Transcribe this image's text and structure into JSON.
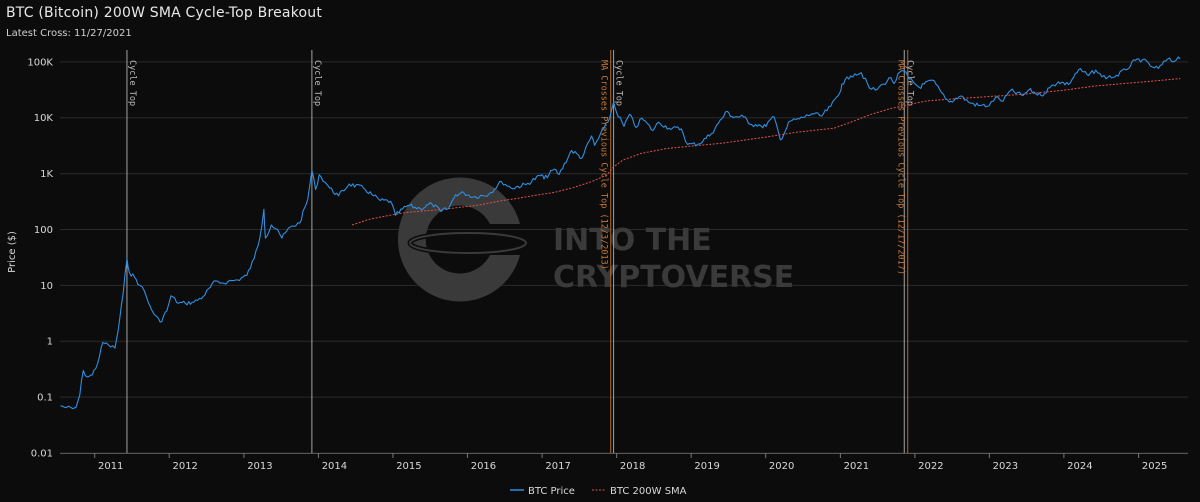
{
  "header": {
    "title": "BTC (Bitcoin) 200W SMA Cycle-Top Breakout",
    "subtitle": "Latest Cross: 11/27/2021"
  },
  "watermark": {
    "line1": "INTO THE",
    "line2": "CRYPTOVERSE"
  },
  "colors": {
    "background": "#0c0c0c",
    "price": "#2f8fe0",
    "sma": "#e05050",
    "cycle_top_line": "#bdbdbd",
    "ma_cross_line": "#c87a3a",
    "grid": "#2a2a2a"
  },
  "chart_data": {
    "type": "line",
    "title": "BTC (Bitcoin) 200W SMA Cycle-Top Breakout",
    "ylabel": "Price ($)",
    "xlabel": "",
    "yscale": "log",
    "ylim": [
      0.01,
      200000
    ],
    "xlim": [
      "2010-07-15",
      "2025-08-31"
    ],
    "y_ticks": [
      {
        "value": 0.01,
        "label": "0.01"
      },
      {
        "value": 0.1,
        "label": "0.1"
      },
      {
        "value": 1,
        "label": "1"
      },
      {
        "value": 10,
        "label": "10"
      },
      {
        "value": 100,
        "label": "100"
      },
      {
        "value": 1000,
        "label": "1K"
      },
      {
        "value": 10000,
        "label": "10K"
      },
      {
        "value": 100000,
        "label": "100K"
      }
    ],
    "x_ticks": [
      "2011",
      "2012",
      "2013",
      "2014",
      "2015",
      "2016",
      "2017",
      "2018",
      "2019",
      "2020",
      "2021",
      "2022",
      "2023",
      "2024",
      "2025"
    ],
    "grid": true,
    "legend_position": "bottom-center",
    "series": [
      {
        "name": "BTC Price",
        "style": "solid",
        "points": [
          [
            "2010-07-18",
            0.07
          ],
          [
            "2010-08-15",
            0.065
          ],
          [
            "2010-09-15",
            0.062
          ],
          [
            "2010-10-01",
            0.065
          ],
          [
            "2010-10-20",
            0.11
          ],
          [
            "2010-11-06",
            0.3
          ],
          [
            "2010-11-25",
            0.23
          ],
          [
            "2010-12-20",
            0.25
          ],
          [
            "2011-01-15",
            0.4
          ],
          [
            "2011-02-10",
            0.95
          ],
          [
            "2011-03-10",
            0.85
          ],
          [
            "2011-04-10",
            0.75
          ],
          [
            "2011-04-25",
            1.5
          ],
          [
            "2011-05-20",
            7
          ],
          [
            "2011-06-08",
            30
          ],
          [
            "2011-06-20",
            17
          ],
          [
            "2011-07-15",
            14
          ],
          [
            "2011-08-10",
            10
          ],
          [
            "2011-09-01",
            8
          ],
          [
            "2011-09-20",
            5
          ],
          [
            "2011-10-20",
            3
          ],
          [
            "2011-11-18",
            2.2
          ],
          [
            "2011-12-20",
            3.5
          ],
          [
            "2012-01-10",
            6.5
          ],
          [
            "2012-02-15",
            4.8
          ],
          [
            "2012-03-20",
            4.8
          ],
          [
            "2012-05-01",
            5
          ],
          [
            "2012-06-15",
            6.3
          ],
          [
            "2012-08-16",
            12
          ],
          [
            "2012-09-15",
            11
          ],
          [
            "2012-10-15",
            11.7
          ],
          [
            "2012-12-01",
            12.5
          ],
          [
            "2013-01-15",
            15
          ],
          [
            "2013-02-20",
            30
          ],
          [
            "2013-03-20",
            70
          ],
          [
            "2013-04-09",
            230
          ],
          [
            "2013-04-16",
            70
          ],
          [
            "2013-05-15",
            120
          ],
          [
            "2013-06-15",
            100
          ],
          [
            "2013-07-06",
            70
          ],
          [
            "2013-08-15",
            110
          ],
          [
            "2013-10-01",
            130
          ],
          [
            "2013-11-10",
            350
          ],
          [
            "2013-11-30",
            1150
          ],
          [
            "2013-12-18",
            520
          ],
          [
            "2014-01-05",
            950
          ],
          [
            "2014-02-10",
            650
          ],
          [
            "2014-02-25",
            550
          ],
          [
            "2014-04-10",
            400
          ],
          [
            "2014-06-01",
            650
          ],
          [
            "2014-08-10",
            550
          ],
          [
            "2014-09-20",
            420
          ],
          [
            "2014-11-01",
            330
          ],
          [
            "2014-12-20",
            320
          ],
          [
            "2015-01-14",
            180
          ],
          [
            "2015-03-15",
            270
          ],
          [
            "2015-05-15",
            235
          ],
          [
            "2015-07-10",
            290
          ],
          [
            "2015-08-24",
            210
          ],
          [
            "2015-10-01",
            240
          ],
          [
            "2015-11-04",
            420
          ],
          [
            "2015-12-15",
            450
          ],
          [
            "2016-02-01",
            380
          ],
          [
            "2016-04-15",
            430
          ],
          [
            "2016-06-16",
            720
          ],
          [
            "2016-08-02",
            550
          ],
          [
            "2016-10-15",
            640
          ],
          [
            "2016-12-31",
            960
          ],
          [
            "2017-01-10",
            800
          ],
          [
            "2017-03-01",
            1200
          ],
          [
            "2017-03-25",
            960
          ],
          [
            "2017-05-25",
            2600
          ],
          [
            "2017-07-15",
            1900
          ],
          [
            "2017-08-31",
            4700
          ],
          [
            "2017-09-15",
            3200
          ],
          [
            "2017-10-31",
            6400
          ],
          [
            "2017-11-28",
            10000
          ],
          [
            "2017-12-17",
            19000
          ],
          [
            "2017-12-30",
            13000
          ],
          [
            "2018-02-06",
            7000
          ],
          [
            "2018-03-05",
            11500
          ],
          [
            "2018-04-06",
            6700
          ],
          [
            "2018-05-05",
            9800
          ],
          [
            "2018-06-28",
            5900
          ],
          [
            "2018-07-25",
            8300
          ],
          [
            "2018-09-15",
            6500
          ],
          [
            "2018-11-14",
            6300
          ],
          [
            "2018-12-15",
            3300
          ],
          [
            "2019-02-08",
            3400
          ],
          [
            "2019-04-10",
            5200
          ],
          [
            "2019-05-15",
            8000
          ],
          [
            "2019-06-26",
            13000
          ],
          [
            "2019-07-20",
            10500
          ],
          [
            "2019-09-15",
            10300
          ],
          [
            "2019-10-25",
            7500
          ],
          [
            "2019-11-30",
            7500
          ],
          [
            "2019-12-18",
            6600
          ],
          [
            "2020-02-12",
            10300
          ],
          [
            "2020-03-13",
            4000
          ],
          [
            "2020-04-30",
            8700
          ],
          [
            "2020-06-15",
            9500
          ],
          [
            "2020-08-15",
            11800
          ],
          [
            "2020-10-01",
            10700
          ],
          [
            "2020-11-15",
            16000
          ],
          [
            "2020-12-31",
            29000
          ],
          [
            "2021-01-08",
            40000
          ],
          [
            "2021-02-20",
            56000
          ],
          [
            "2021-03-13",
            61000
          ],
          [
            "2021-04-14",
            63500
          ],
          [
            "2021-05-23",
            34000
          ],
          [
            "2021-06-22",
            31000
          ],
          [
            "2021-07-30",
            40000
          ],
          [
            "2021-09-06",
            52000
          ],
          [
            "2021-09-21",
            41000
          ],
          [
            "2021-10-20",
            66000
          ],
          [
            "2021-11-10",
            68000
          ],
          [
            "2021-12-05",
            49000
          ],
          [
            "2022-01-22",
            35000
          ],
          [
            "2022-03-28",
            47000
          ],
          [
            "2022-05-12",
            28000
          ],
          [
            "2022-06-18",
            19000
          ],
          [
            "2022-08-14",
            24500
          ],
          [
            "2022-09-20",
            19000
          ],
          [
            "2022-11-09",
            16500
          ],
          [
            "2022-12-31",
            16500
          ],
          [
            "2023-01-31",
            23000
          ],
          [
            "2023-03-10",
            20000
          ],
          [
            "2023-04-14",
            30500
          ],
          [
            "2023-06-15",
            25000
          ],
          [
            "2023-07-13",
            31500
          ],
          [
            "2023-09-11",
            25000
          ],
          [
            "2023-10-24",
            34500
          ],
          [
            "2023-12-05",
            44000
          ],
          [
            "2024-01-23",
            39500
          ],
          [
            "2024-03-14",
            73000
          ],
          [
            "2024-05-01",
            57000
          ],
          [
            "2024-06-05",
            71000
          ],
          [
            "2024-07-05",
            54000
          ],
          [
            "2024-08-05",
            54000
          ],
          [
            "2024-09-06",
            53500
          ],
          [
            "2024-10-29",
            72000
          ],
          [
            "2024-12-17",
            106000
          ],
          [
            "2025-01-20",
            109000
          ],
          [
            "2025-02-28",
            84000
          ],
          [
            "2025-04-08",
            76000
          ],
          [
            "2025-05-22",
            111000
          ],
          [
            "2025-06-22",
            100000
          ],
          [
            "2025-07-14",
            122000
          ],
          [
            "2025-07-25",
            117000
          ]
        ]
      },
      {
        "name": "BTC 200W SMA",
        "style": "dashed",
        "points": [
          [
            "2014-06-15",
            120
          ],
          [
            "2014-09-01",
            150
          ],
          [
            "2014-12-01",
            175
          ],
          [
            "2015-03-01",
            200
          ],
          [
            "2015-06-01",
            215
          ],
          [
            "2015-09-01",
            228
          ],
          [
            "2015-12-01",
            250
          ],
          [
            "2016-03-01",
            275
          ],
          [
            "2016-06-01",
            320
          ],
          [
            "2016-09-01",
            360
          ],
          [
            "2016-12-01",
            410
          ],
          [
            "2017-03-01",
            460
          ],
          [
            "2017-06-01",
            560
          ],
          [
            "2017-09-01",
            720
          ],
          [
            "2017-11-15",
            950
          ],
          [
            "2017-12-15",
            1300
          ],
          [
            "2018-02-01",
            1750
          ],
          [
            "2018-05-01",
            2300
          ],
          [
            "2018-09-01",
            2800
          ],
          [
            "2019-01-01",
            3100
          ],
          [
            "2019-06-01",
            3500
          ],
          [
            "2020-01-01",
            4500
          ],
          [
            "2020-06-01",
            5500
          ],
          [
            "2020-12-01",
            6500
          ],
          [
            "2021-03-01",
            8500
          ],
          [
            "2021-06-01",
            11500
          ],
          [
            "2021-09-01",
            14500
          ],
          [
            "2021-11-27",
            17000
          ],
          [
            "2022-03-01",
            20000
          ],
          [
            "2022-08-01",
            22000
          ],
          [
            "2023-01-01",
            24000
          ],
          [
            "2023-06-01",
            26000
          ],
          [
            "2024-01-01",
            31000
          ],
          [
            "2024-06-01",
            37000
          ],
          [
            "2025-01-01",
            43000
          ],
          [
            "2025-07-25",
            50000
          ]
        ]
      }
    ],
    "annotations": [
      {
        "date": "2011-06-08",
        "text": "Cycle Top",
        "kind": "cycle_top"
      },
      {
        "date": "2013-11-30",
        "text": "Cycle Top",
        "kind": "cycle_top"
      },
      {
        "date": "2017-12-17",
        "text": "Cycle Top",
        "kind": "cycle_top"
      },
      {
        "date": "2021-11-10",
        "text": "Cycle Top",
        "kind": "cycle_top"
      },
      {
        "date": "2017-12-03",
        "text": "MA Crosses Previous Cycle Top (12/3/2013)",
        "kind": "ma_cross"
      },
      {
        "date": "2021-11-27",
        "text": "MA Crosses Previous Cycle Top (12/17/2017)",
        "kind": "ma_cross"
      }
    ]
  }
}
